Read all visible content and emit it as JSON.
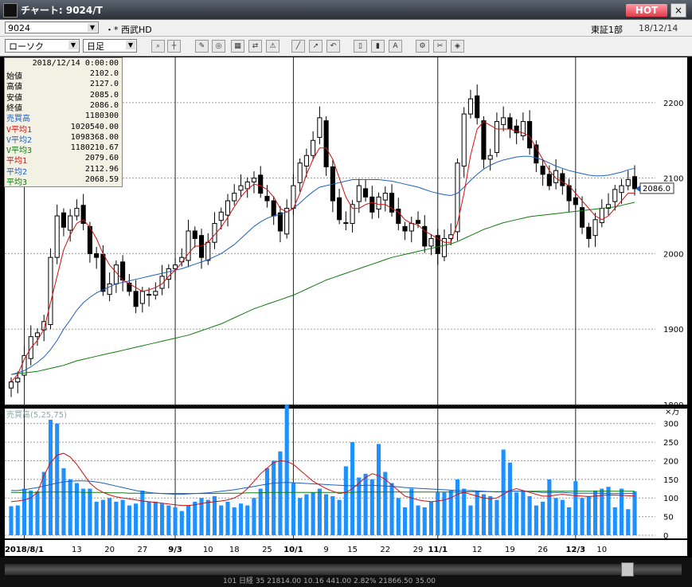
{
  "window": {
    "title": "チャート: 9024/T",
    "hot_label": "HOT",
    "close_label": "×"
  },
  "header": {
    "code": "9024",
    "name_marker": "・* 西武HD",
    "market": "東証1部",
    "date": "18/12/14"
  },
  "toolbar": {
    "chart_type": "ローソク",
    "period": "日足"
  },
  "info": {
    "datetime": "2018/12/14 0:00:00",
    "rows": [
      {
        "label": "始値",
        "value": "2102.0",
        "color": "#000000"
      },
      {
        "label": "高値",
        "value": "2127.0",
        "color": "#000000"
      },
      {
        "label": "安値",
        "value": "2085.0",
        "color": "#000000"
      },
      {
        "label": "終値",
        "value": "2086.0",
        "color": "#000000"
      },
      {
        "label": "売買高",
        "value": "1180300",
        "color": "#1f5fbf"
      },
      {
        "label": "V平均1",
        "value": "1020540.00",
        "color": "#d01010"
      },
      {
        "label": "V平均2",
        "value": "1098368.00",
        "color": "#1f5fbf"
      },
      {
        "label": "V平均3",
        "value": "1180210.67",
        "color": "#107a10"
      },
      {
        "label": "平均1",
        "value": "2079.60",
        "color": "#d01010"
      },
      {
        "label": "平均2",
        "value": "2112.96",
        "color": "#1f5fbf"
      },
      {
        "label": "平均3",
        "value": "2068.59",
        "color": "#107a10"
      }
    ]
  },
  "chart_data": [
    {
      "type": "candlestick",
      "y_ticks": [
        "2200",
        "2100",
        "2000",
        "1900",
        "1800"
      ],
      "ylim": [
        1800,
        2260
      ],
      "last_price_label": "2086.0",
      "x_labels": [
        {
          "i": 2,
          "label": "2018/8/1",
          "bold": true
        },
        {
          "i": 10,
          "label": "13",
          "bold": false
        },
        {
          "i": 15,
          "label": "20",
          "bold": false
        },
        {
          "i": 20,
          "label": "27",
          "bold": false
        },
        {
          "i": 25,
          "label": "9/3",
          "bold": true
        },
        {
          "i": 30,
          "label": "10",
          "bold": false
        },
        {
          "i": 34,
          "label": "18",
          "bold": false
        },
        {
          "i": 39,
          "label": "25",
          "bold": false
        },
        {
          "i": 43,
          "label": "10/1",
          "bold": true
        },
        {
          "i": 48,
          "label": "9",
          "bold": false
        },
        {
          "i": 52,
          "label": "15",
          "bold": false
        },
        {
          "i": 57,
          "label": "22",
          "bold": false
        },
        {
          "i": 62,
          "label": "29",
          "bold": false
        },
        {
          "i": 65,
          "label": "11/1",
          "bold": true
        },
        {
          "i": 71,
          "label": "12",
          "bold": false
        },
        {
          "i": 76,
          "label": "19",
          "bold": false
        },
        {
          "i": 81,
          "label": "26",
          "bold": false
        },
        {
          "i": 86,
          "label": "12/3",
          "bold": true
        },
        {
          "i": 90,
          "label": "10",
          "bold": false
        }
      ],
      "month_lines": [
        2,
        25,
        43,
        65,
        86
      ],
      "closes": [
        1830,
        1835,
        1865,
        1890,
        1895,
        1910,
        1995,
        2050,
        2035,
        2050,
        2060,
        2040,
        2000,
        1995,
        1950,
        1960,
        1985,
        1965,
        1950,
        1930,
        1950,
        1945,
        1950,
        1970,
        1980,
        1985,
        1995,
        2030,
        2020,
        1995,
        2015,
        2040,
        2055,
        2070,
        2080,
        2090,
        2095,
        2100,
        2080,
        2070,
        2050,
        2030,
        2060,
        2090,
        2120,
        2130,
        2150,
        2180,
        2115,
        2070,
        2045,
        2040,
        2065,
        2090,
        2075,
        2055,
        2075,
        2080,
        2055,
        2040,
        2030,
        2040,
        2040,
        2010,
        2020,
        2000,
        2020,
        2025,
        2120,
        2185,
        2205,
        2180,
        2125,
        2130,
        2175,
        2180,
        2165,
        2160,
        2175,
        2140,
        2120,
        2105,
        2090,
        2110,
        2090,
        2070,
        2065,
        2035,
        2020,
        2045,
        2060,
        2065,
        2085,
        2090,
        2098,
        2086
      ],
      "ma1": [
        1830,
        1840,
        1860,
        1875,
        1885,
        1900,
        1935,
        1970,
        2005,
        2025,
        2040,
        2045,
        2035,
        2020,
        2000,
        1985,
        1975,
        1965,
        1960,
        1955,
        1950,
        1952,
        1955,
        1960,
        1970,
        1978,
        1988,
        2000,
        2010,
        2010,
        2015,
        2025,
        2035,
        2048,
        2062,
        2075,
        2085,
        2092,
        2090,
        2085,
        2075,
        2060,
        2055,
        2060,
        2080,
        2105,
        2125,
        2140,
        2140,
        2125,
        2100,
        2075,
        2060,
        2060,
        2065,
        2068,
        2065,
        2065,
        2060,
        2055,
        2045,
        2040,
        2038,
        2030,
        2025,
        2020,
        2015,
        2015,
        2040,
        2080,
        2130,
        2165,
        2175,
        2170,
        2165,
        2165,
        2165,
        2162,
        2160,
        2155,
        2140,
        2125,
        2110,
        2100,
        2095,
        2090,
        2080,
        2070,
        2060,
        2050,
        2045,
        2050,
        2060,
        2070,
        2080,
        2080
      ],
      "ma2": [
        1840,
        1842,
        1845,
        1850,
        1856,
        1863,
        1873,
        1885,
        1900,
        1912,
        1925,
        1935,
        1942,
        1948,
        1952,
        1956,
        1960,
        1962,
        1964,
        1966,
        1968,
        1970,
        1972,
        1974,
        1976,
        1978,
        1980,
        1983,
        1986,
        1989,
        1992,
        1996,
        2000,
        2006,
        2012,
        2020,
        2028,
        2036,
        2042,
        2047,
        2050,
        2052,
        2055,
        2060,
        2067,
        2075,
        2082,
        2088,
        2090,
        2092,
        2094,
        2096,
        2098,
        2098,
        2098,
        2098,
        2098,
        2097,
        2096,
        2094,
        2092,
        2090,
        2088,
        2085,
        2082,
        2080,
        2078,
        2077,
        2080,
        2088,
        2097,
        2105,
        2112,
        2117,
        2121,
        2124,
        2126,
        2128,
        2129,
        2129,
        2127,
        2124,
        2120,
        2116,
        2113,
        2110,
        2108,
        2106,
        2104,
        2103,
        2103,
        2104,
        2106,
        2108,
        2111,
        2113
      ],
      "ma3": [
        1840,
        1841,
        1842,
        1843,
        1844,
        1846,
        1848,
        1850,
        1852,
        1855,
        1858,
        1860,
        1862,
        1864,
        1866,
        1868,
        1870,
        1872,
        1874,
        1876,
        1878,
        1880,
        1882,
        1884,
        1886,
        1888,
        1890,
        1892,
        1895,
        1898,
        1901,
        1904,
        1907,
        1911,
        1915,
        1919,
        1923,
        1927,
        1930,
        1933,
        1936,
        1939,
        1942,
        1945,
        1949,
        1953,
        1957,
        1961,
        1965,
        1968,
        1971,
        1974,
        1977,
        1980,
        1983,
        1986,
        1989,
        1992,
        1995,
        1997,
        1999,
        2001,
        2003,
        2005,
        2007,
        2009,
        2011,
        2013,
        2016,
        2020,
        2024,
        2028,
        2032,
        2035,
        2038,
        2041,
        2043,
        2045,
        2047,
        2049,
        2050,
        2051,
        2052,
        2053,
        2054,
        2055,
        2056,
        2057,
        2058,
        2059,
        2060,
        2061,
        2062,
        2064,
        2066,
        2068
      ]
    },
    {
      "type": "bar",
      "label": "売買高",
      "params": "(5,25,75)",
      "unit": "×万",
      "y_ticks": [
        "300",
        "250",
        "200",
        "150",
        "100",
        "50",
        "0"
      ],
      "ylim": [
        0,
        340
      ],
      "values": [
        78,
        80,
        125,
        120,
        118,
        170,
        310,
        300,
        180,
        150,
        140,
        125,
        125,
        90,
        95,
        100,
        90,
        95,
        80,
        85,
        120,
        90,
        90,
        85,
        80,
        75,
        65,
        80,
        90,
        100,
        95,
        105,
        80,
        90,
        75,
        85,
        80,
        100,
        125,
        180,
        200,
        225,
        350,
        140,
        100,
        110,
        115,
        125,
        110,
        105,
        95,
        185,
        250,
        155,
        165,
        150,
        245,
        170,
        140,
        100,
        75,
        125,
        80,
        75,
        90,
        115,
        115,
        120,
        150,
        125,
        80,
        120,
        110,
        105,
        95,
        230,
        195,
        115,
        120,
        105,
        80,
        90,
        150,
        100,
        95,
        75,
        145,
        100,
        105,
        120,
        125,
        130,
        75,
        125,
        70,
        118
      ],
      "ma1": [
        90,
        92,
        95,
        100,
        115,
        160,
        195,
        215,
        220,
        210,
        190,
        165,
        140,
        125,
        115,
        108,
        103,
        100,
        98,
        95,
        92,
        90,
        88,
        86,
        84,
        82,
        80,
        80,
        82,
        85,
        88,
        90,
        92,
        95,
        100,
        110,
        125,
        145,
        165,
        180,
        195,
        200,
        198,
        190,
        175,
        160,
        145,
        135,
        125,
        118,
        112,
        115,
        125,
        140,
        155,
        165,
        160,
        150,
        135,
        120,
        105,
        100,
        95,
        92,
        90,
        92,
        95,
        100,
        110,
        115,
        110,
        105,
        100,
        98,
        100,
        110,
        120,
        125,
        120,
        115,
        110,
        105,
        105,
        108,
        110,
        108,
        106,
        105,
        104,
        105,
        107,
        108,
        108,
        107,
        106,
        105
      ],
      "ma2": [
        120,
        120,
        122,
        125,
        128,
        132,
        136,
        140,
        143,
        145,
        146,
        146,
        145,
        143,
        140,
        136,
        132,
        128,
        124,
        120,
        117,
        115,
        113,
        112,
        111,
        110,
        110,
        111,
        112,
        113,
        114,
        116,
        118,
        120,
        122,
        125,
        128,
        131,
        134,
        137,
        140,
        141,
        142,
        141,
        140,
        139,
        138,
        137,
        136,
        135,
        134,
        133,
        133,
        133,
        134,
        134,
        133,
        132,
        131,
        130,
        128,
        127,
        126,
        125,
        124,
        123,
        122,
        121,
        120,
        120,
        120,
        119,
        118,
        117,
        116,
        117,
        118,
        118,
        118,
        117,
        116,
        115,
        115,
        115,
        115,
        114,
        113,
        113,
        113,
        113,
        113,
        112,
        112,
        112,
        112,
        112
      ],
      "ma3": [
        115,
        115,
        115,
        115,
        115,
        116,
        116,
        116,
        116,
        116,
        116,
        115,
        115,
        115,
        115,
        114,
        114,
        114,
        113,
        113,
        113,
        113,
        113,
        112,
        112,
        112,
        112,
        112,
        112,
        112,
        112,
        112,
        113,
        113,
        113,
        113,
        114,
        114,
        114,
        115,
        115,
        115,
        115,
        115,
        115,
        115,
        115,
        115,
        115,
        115,
        115,
        115,
        115,
        116,
        116,
        116,
        116,
        116,
        116,
        116,
        116,
        116,
        116,
        116,
        116,
        116,
        116,
        116,
        116,
        116,
        117,
        117,
        117,
        117,
        117,
        117,
        118,
        118,
        118,
        118,
        118,
        118,
        118,
        118,
        118,
        118,
        118,
        118,
        118,
        118,
        118,
        118,
        118,
        118,
        118,
        118
      ]
    }
  ],
  "footer": {
    "ticker_text": "101   日経   35   21814.00   10.16   441.00   2.82%   21866.50   35.00"
  },
  "colors": {
    "candle_up": "#ffffff",
    "candle_down": "#000000",
    "ma1": "#d01010",
    "ma2": "#1f5fbf",
    "ma3": "#107a10",
    "volume_bar": "#1e90ff",
    "grid": "#9a9a9a"
  }
}
